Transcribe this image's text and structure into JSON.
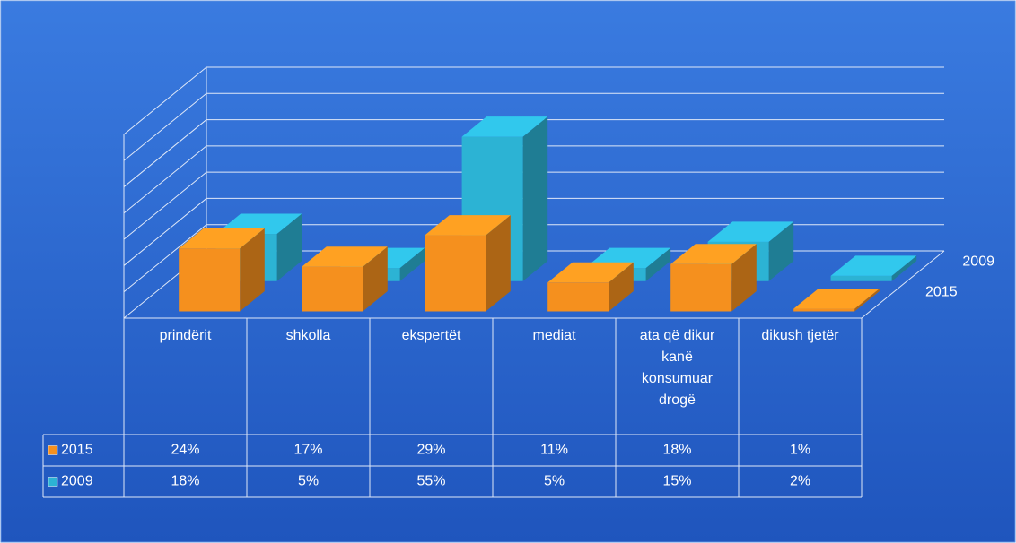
{
  "chart_data": {
    "type": "bar3d",
    "categories": [
      "prindërit",
      "shkolla",
      "ekspertët",
      "mediat",
      "ata që dikur kanë konsumuar drogë",
      "dikush tjetër"
    ],
    "series": [
      {
        "name": "2015",
        "color": "#f5901e",
        "values": [
          24,
          17,
          29,
          11,
          18,
          1
        ],
        "value_labels": [
          "24%",
          "17%",
          "29%",
          "11%",
          "18%",
          "1%"
        ]
      },
      {
        "name": "2009",
        "color": "#2cb3d4",
        "values": [
          18,
          5,
          55,
          5,
          15,
          2
        ],
        "value_labels": [
          "18%",
          "5%",
          "55%",
          "5%",
          "15%",
          "2%"
        ]
      }
    ],
    "ylim": [
      0,
      70
    ],
    "yticks": [
      0,
      10,
      20,
      30,
      40,
      50,
      60,
      70
    ],
    "grid": true
  }
}
